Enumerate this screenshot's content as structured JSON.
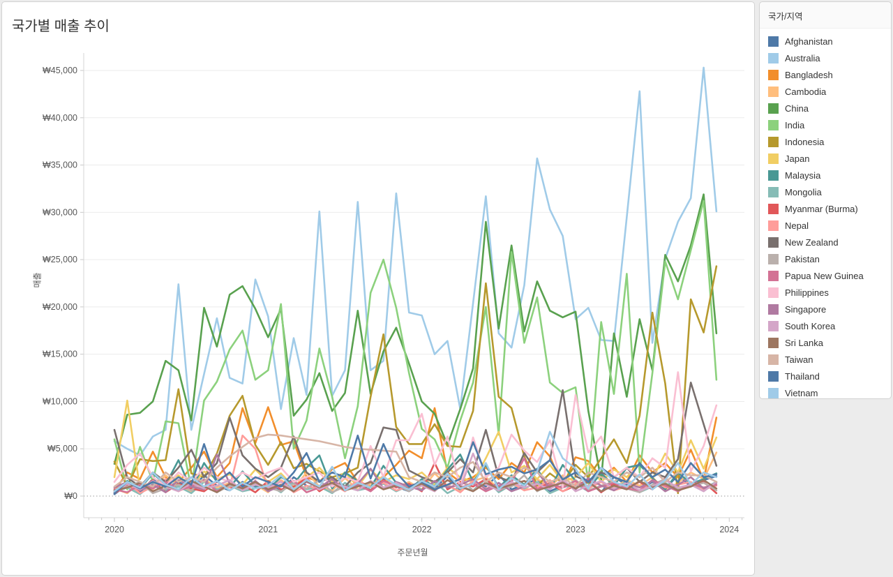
{
  "page": {
    "title": "국가별 매출 추이"
  },
  "legend": {
    "title": "국가/지역"
  },
  "chart_data": {
    "type": "line",
    "title": "국가별 매출 추이",
    "xlabel": "주문년월",
    "ylabel": "매출",
    "legend_position": "right",
    "grid": "horizontal",
    "zero_line": "dashed",
    "ylim": [
      0,
      45000
    ],
    "y_tick_step": 5000,
    "y_tick_labels": [
      "₩0",
      "₩5,000",
      "₩10,000",
      "₩15,000",
      "₩20,000",
      "₩25,000",
      "₩30,000",
      "₩35,000",
      "₩40,000",
      "₩45,000"
    ],
    "x_tick_labels": [
      "2020",
      "2021",
      "2022",
      "2023",
      "2024"
    ],
    "x_range_months": [
      "2020-01",
      "2023-12"
    ],
    "months_per_year": 12,
    "series": [
      {
        "name": "Afghanistan",
        "color": "#4e79a7",
        "values": [
          200,
          1200,
          400,
          1800,
          900,
          1500,
          700,
          2200,
          1100,
          600,
          1500,
          900,
          1300,
          500,
          2000,
          1100,
          700,
          1600,
          900,
          1400,
          600,
          1900,
          1000,
          500,
          1400,
          800,
          2100,
          600,
          1500,
          1000,
          2300,
          700,
          1200,
          1800,
          500,
          1100,
          900,
          1600,
          400,
          2000,
          1200,
          600,
          1500,
          800,
          2200,
          1000,
          1700,
          2100
        ]
      },
      {
        "name": "Australia",
        "color": "#a0cbe8",
        "values": [
          5800,
          5000,
          4300,
          6300,
          7000,
          22400,
          7000,
          12900,
          18800,
          12500,
          11900,
          22900,
          19000,
          9200,
          16700,
          10700,
          30100,
          10600,
          13300,
          31100,
          13300,
          14300,
          32000,
          19400,
          19100,
          15000,
          16400,
          9200,
          20400,
          31700,
          17200,
          15700,
          22300,
          35700,
          30300,
          27500,
          18700,
          19900,
          16500,
          16400,
          29500,
          42800,
          16200,
          25100,
          29000,
          31500,
          45300,
          30100
        ]
      },
      {
        "name": "Bangladesh",
        "color": "#f28e2b",
        "values": [
          500,
          2500,
          1800,
          4700,
          2000,
          1500,
          3000,
          4700,
          2000,
          3500,
          9300,
          5600,
          9400,
          5400,
          5800,
          2000,
          1500,
          2850,
          3500,
          1500,
          1000,
          2000,
          3300,
          4800,
          4000,
          9300,
          2500,
          1500,
          2000,
          3000,
          1800,
          3500,
          2500,
          5700,
          4200,
          1000,
          4100,
          3700,
          2000,
          3000,
          1500,
          4300,
          2500,
          3500,
          2000,
          4900,
          1700,
          8300
        ]
      },
      {
        "name": "Cambodia",
        "color": "#ffbe7d",
        "values": [
          800,
          300,
          1500,
          700,
          2200,
          1100,
          500,
          1800,
          900,
          1400,
          600,
          1200,
          400,
          1700,
          800,
          2500,
          1000,
          600,
          1900,
          700,
          1300,
          2100,
          900,
          1500,
          700,
          2400,
          1100,
          500,
          1600,
          2000,
          800,
          1400,
          600,
          1800,
          1000,
          2200,
          1500,
          700,
          2600,
          900,
          1700,
          1100,
          2000,
          600,
          1400,
          2500,
          1800,
          4600
        ]
      },
      {
        "name": "China",
        "color": "#59a14f",
        "values": [
          3400,
          8600,
          8800,
          10000,
          14300,
          13300,
          8000,
          19900,
          15800,
          21300,
          22200,
          19800,
          16800,
          19800,
          8500,
          10200,
          13000,
          9000,
          10900,
          19600,
          10800,
          15300,
          17800,
          14000,
          10000,
          8700,
          5400,
          9200,
          13500,
          29000,
          17700,
          26500,
          17400,
          22700,
          19600,
          18900,
          19500,
          9000,
          1700,
          17200,
          10500,
          18700,
          13300,
          25500,
          22700,
          26500,
          31900,
          17200
        ]
      },
      {
        "name": "India",
        "color": "#8cd17d",
        "values": [
          6000,
          700,
          5200,
          1500,
          7900,
          7700,
          800,
          10100,
          12100,
          15500,
          17500,
          12300,
          13300,
          20300,
          5000,
          8000,
          15600,
          10500,
          4000,
          9500,
          21500,
          25000,
          19900,
          13000,
          7100,
          6000,
          3000,
          8000,
          12000,
          20000,
          6500,
          25800,
          16200,
          21000,
          12000,
          10900,
          11500,
          1300,
          18400,
          10800,
          23500,
          2500,
          13000,
          24800,
          20800,
          26000,
          31200,
          12300
        ]
      },
      {
        "name": "Indonesia",
        "color": "#b6992d",
        "values": [
          3650,
          1050,
          3900,
          3700,
          3800,
          11300,
          2400,
          2000,
          4500,
          8500,
          10600,
          5400,
          3300,
          5700,
          2950,
          3400,
          2600,
          2000,
          2400,
          3000,
          10500,
          17100,
          7300,
          5500,
          5500,
          7600,
          5300,
          5200,
          9000,
          22500,
          10500,
          9300,
          4200,
          1100,
          2400,
          1400,
          3300,
          2000,
          4000,
          6000,
          3500,
          8500,
          19400,
          11900,
          300,
          20800,
          17300,
          24300
        ]
      },
      {
        "name": "Japan",
        "color": "#f1ce63",
        "values": [
          2000,
          10100,
          700,
          2500,
          1500,
          2200,
          1000,
          2600,
          1800,
          2300,
          1200,
          2800,
          1500,
          2400,
          1000,
          2000,
          3000,
          1500,
          2500,
          1000,
          2800,
          1500,
          2200,
          1800,
          2500,
          1200,
          3000,
          2000,
          1500,
          4000,
          6800,
          2500,
          3200,
          1800,
          3300,
          1500,
          2000,
          3500,
          1500,
          2800,
          2000,
          3500,
          1800,
          4500,
          2500,
          5900,
          2900,
          6200
        ]
      },
      {
        "name": "Malaysia",
        "color": "#499894",
        "values": [
          300,
          1600,
          800,
          2400,
          1200,
          3800,
          600,
          3500,
          1500,
          900,
          2600,
          1100,
          700,
          2000,
          1300,
          3000,
          4300,
          800,
          2500,
          1600,
          900,
          3200,
          1400,
          700,
          1800,
          1000,
          2800,
          4400,
          1500,
          3300,
          900,
          2200,
          1200,
          2900,
          700,
          3300,
          1600,
          800,
          2400,
          1100,
          3000,
          3300,
          1900,
          700,
          2500,
          1300,
          1800,
          2400
        ]
      },
      {
        "name": "Mongolia",
        "color": "#86bcb6",
        "values": [
          400,
          900,
          200,
          1300,
          600,
          1000,
          300,
          1500,
          700,
          1100,
          500,
          800,
          1200,
          400,
          1600,
          700,
          1000,
          300,
          1400,
          600,
          900,
          1300,
          500,
          1100,
          700,
          1500,
          300,
          1000,
          600,
          1800,
          400,
          1200,
          800,
          1500,
          300,
          900,
          1300,
          500,
          1100,
          700,
          1600,
          400,
          1000,
          1400,
          600,
          1200,
          800,
          1500
        ]
      },
      {
        "name": "Myanmar (Burma)",
        "color": "#e15759",
        "values": [
          300,
          1100,
          600,
          1700,
          400,
          1300,
          800,
          500,
          1500,
          900,
          1200,
          400,
          1600,
          700,
          1000,
          1900,
          500,
          1400,
          800,
          1100,
          600,
          1700,
          900,
          1300,
          500,
          3500,
          700,
          1500,
          1000,
          1800,
          600,
          1200,
          1600,
          800,
          1400,
          500,
          1100,
          1700,
          400,
          1300,
          900,
          1500,
          700,
          1900,
          600,
          1200,
          1500,
          300
        ]
      },
      {
        "name": "Nepal",
        "color": "#ff9d9a",
        "values": [
          600,
          1400,
          300,
          1000,
          1800,
          500,
          1200,
          700,
          1500,
          900,
          6400,
          5000,
          800,
          1600,
          400,
          1100,
          700,
          1300,
          500,
          1700,
          900,
          1400,
          600,
          1000,
          1500,
          700,
          1200,
          400,
          1600,
          800,
          1100,
          1400,
          600,
          900,
          1700,
          500,
          1300,
          800,
          1500,
          600,
          1000,
          400,
          1700,
          900,
          1200,
          1500,
          700,
          1100
        ]
      },
      {
        "name": "New Zealand",
        "color": "#79706e",
        "values": [
          7000,
          1950,
          1000,
          2500,
          1500,
          3000,
          4900,
          2000,
          3500,
          8300,
          4300,
          2900,
          2000,
          3000,
          6300,
          2500,
          1500,
          2000,
          1000,
          2500,
          3500,
          7250,
          7000,
          2700,
          2000,
          1500,
          2500,
          3900,
          2500,
          7000,
          2000,
          1500,
          4550,
          2500,
          3800,
          11200,
          2100,
          1500,
          2500,
          2000,
          3000,
          1500,
          2500,
          2000,
          3900,
          12000,
          7600,
          3200
        ]
      },
      {
        "name": "Pakistan",
        "color": "#bab0ac",
        "values": [
          500,
          1000,
          1500,
          300,
          800,
          1200,
          600,
          1800,
          400,
          1100,
          700,
          1400,
          900,
          500,
          1300,
          800,
          1700,
          400,
          1000,
          600,
          1500,
          900,
          1200,
          500,
          1600,
          800,
          1100,
          1900,
          600,
          1400,
          700,
          1000,
          2200,
          500,
          1300,
          900,
          1700,
          600,
          1100,
          1500,
          800,
          400,
          1200,
          1800,
          700,
          1000,
          1400,
          600
        ]
      },
      {
        "name": "Papua New Guinea",
        "color": "#d37295",
        "values": [
          700,
          400,
          1200,
          800,
          1500,
          600,
          1000,
          1700,
          500,
          1300,
          900,
          1500,
          600,
          1100,
          1600,
          400,
          900,
          1400,
          700,
          1200,
          500,
          1600,
          1000,
          800,
          1400,
          600,
          1700,
          900,
          1300,
          500,
          1100,
          1500,
          4000,
          700,
          1200,
          900,
          1600,
          500,
          1000,
          1400,
          800,
          600,
          1700,
          1100,
          500,
          1300,
          900,
          1200
        ]
      },
      {
        "name": "Philippines",
        "color": "#fabfd2",
        "values": [
          1500,
          3300,
          4500,
          2000,
          1000,
          2500,
          1500,
          3000,
          2000,
          1500,
          2500,
          1800,
          2500,
          3000,
          1500,
          2000,
          2500,
          1000,
          2000,
          1500,
          5300,
          2000,
          5900,
          5900,
          8700,
          3300,
          6300,
          900,
          6200,
          2000,
          3000,
          6500,
          4800,
          3600,
          5900,
          900,
          10700,
          4600,
          6300,
          2000,
          3000,
          2000,
          4000,
          3000,
          13100,
          2600,
          5300,
          9600
        ]
      },
      {
        "name": "Singapore",
        "color": "#b07aa1",
        "values": [
          900,
          1500,
          600,
          1200,
          400,
          1700,
          1000,
          700,
          4400,
          1300,
          800,
          1600,
          500,
          1100,
          700,
          1500,
          900,
          1800,
          600,
          1300,
          2900,
          800,
          1500,
          1000,
          600,
          1600,
          900,
          1200,
          1800,
          700,
          1400,
          500,
          1000,
          2600,
          800,
          1500,
          700,
          1900,
          1100,
          600,
          1400,
          900,
          1600,
          500,
          1200,
          2000,
          800,
          1400
        ]
      },
      {
        "name": "South Korea",
        "color": "#d4a6c8",
        "values": [
          400,
          1300,
          700,
          1600,
          1000,
          500,
          1400,
          800,
          1100,
          1700,
          600,
          1200,
          900,
          1500,
          500,
          1800,
          700,
          1300,
          1000,
          600,
          1600,
          900,
          1400,
          700,
          1100,
          500,
          1700,
          800,
          4500,
          1200,
          600,
          1500,
          900,
          1300,
          700,
          1800,
          500,
          1100,
          1600,
          800,
          1400,
          600,
          1000,
          1700,
          900,
          1200,
          500,
          1500
        ]
      },
      {
        "name": "Sri Lanka",
        "color": "#9d7660",
        "values": [
          600,
          900,
          1400,
          500,
          1100,
          700,
          1600,
          1000,
          400,
          1300,
          800,
          1500,
          700,
          1200,
          500,
          1600,
          900,
          1400,
          600,
          1000,
          1500,
          700,
          1100,
          800,
          1300,
          600,
          1700,
          1000,
          500,
          1400,
          800,
          1200,
          1600,
          600,
          1000,
          1400,
          800,
          1500,
          500,
          1100,
          700,
          1600,
          900,
          1300,
          600,
          1000,
          1700,
          800
        ]
      },
      {
        "name": "Taiwan",
        "color": "#d7b5a6",
        "values": [
          1000,
          2000,
          1500,
          1000,
          2500,
          1500,
          2000,
          1500,
          3000,
          4200,
          5200,
          6150,
          6500,
          6400,
          6200,
          6000,
          5800,
          5500,
          5200,
          5000,
          4900,
          4800,
          4700,
          2000,
          1500,
          2500,
          2000,
          3000,
          3600,
          1500,
          2500,
          2000,
          3000,
          2500,
          1500,
          2000,
          1000,
          2500,
          2000,
          1500,
          2500,
          2000,
          3000,
          1500,
          2500,
          2200,
          2200,
          1500
        ]
      },
      {
        "name": "Thailand",
        "color": "#4e79a7",
        "values": [
          300,
          1500,
          800,
          1500,
          1000,
          2000,
          1200,
          5500,
          1500,
          2500,
          1000,
          2000,
          1500,
          1000,
          2500,
          4550,
          1500,
          2500,
          2000,
          6400,
          1850,
          5500,
          2500,
          1000,
          1500,
          700,
          1200,
          1800,
          5700,
          2300,
          2800,
          3100,
          2400,
          2800,
          3800,
          1750,
          2500,
          1500,
          3000,
          2000,
          1500,
          3500,
          2000,
          2800,
          1500,
          3500,
          2000,
          2300
        ]
      },
      {
        "name": "Vietnam",
        "color": "#a0cbe8",
        "values": [
          500,
          1500,
          900,
          2500,
          1200,
          700,
          2000,
          1000,
          1600,
          600,
          1400,
          800,
          1100,
          2200,
          700,
          1700,
          1000,
          3100,
          600,
          1400,
          900,
          2000,
          1200,
          700,
          1600,
          1000,
          2400,
          800,
          1300,
          3500,
          700,
          1900,
          1100,
          2600,
          6800,
          4000,
          2900,
          800,
          3000,
          1500,
          1000,
          2300,
          700,
          1700,
          3500,
          1200,
          2500,
          2000
        ]
      }
    ]
  }
}
